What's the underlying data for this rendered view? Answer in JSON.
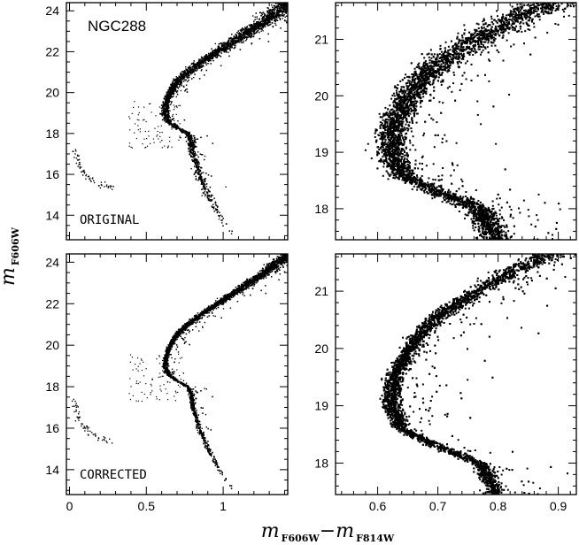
{
  "chart_data": {
    "type": "scatter",
    "xlabel_main": "m",
    "xlabel_sub1": "F606W",
    "xlabel_minus": "−m",
    "xlabel_sub2": "F814W",
    "ylabel_main": "m",
    "ylabel_sub": "F606W",
    "panels": [
      {
        "id": "top-left",
        "title": "NGC288",
        "label": "ORIGINAL",
        "xlim": [
          -0.02,
          1.42
        ],
        "ylim": [
          24.4,
          12.8
        ],
        "xticks": [
          0,
          0.5,
          1
        ],
        "xtick_labels": [
          "",
          "",
          ""
        ],
        "yticks": [
          14,
          16,
          18,
          20,
          22,
          24
        ],
        "ytick_labels": [
          "14",
          "16",
          "18",
          "20",
          "22",
          "24"
        ],
        "scatter": 0.012,
        "n_points": 5200
      },
      {
        "id": "top-right",
        "title": "",
        "label": "",
        "xlim": [
          0.53,
          0.93
        ],
        "ylim": [
          21.65,
          17.45
        ],
        "xticks": [
          0.6,
          0.7,
          0.8,
          0.9
        ],
        "xtick_labels": [
          "",
          "",
          "",
          ""
        ],
        "yticks": [
          18,
          19,
          20,
          21
        ],
        "ytick_labels": [
          "18",
          "19",
          "20",
          "21"
        ],
        "scatter": 0.012,
        "n_points": 5200
      },
      {
        "id": "bottom-left",
        "title": "",
        "label": "CORRECTED",
        "xlim": [
          -0.02,
          1.42
        ],
        "ylim": [
          24.4,
          12.8
        ],
        "xticks": [
          0,
          0.5,
          1
        ],
        "xtick_labels": [
          "0",
          "0.5",
          "1"
        ],
        "yticks": [
          14,
          16,
          18,
          20,
          22,
          24
        ],
        "ytick_labels": [
          "14",
          "16",
          "18",
          "20",
          "22",
          "24"
        ],
        "scatter": 0.007,
        "n_points": 5200
      },
      {
        "id": "bottom-right",
        "title": "",
        "label": "",
        "xlim": [
          0.53,
          0.93
        ],
        "ylim": [
          21.65,
          17.45
        ],
        "xticks": [
          0.6,
          0.7,
          0.8,
          0.9
        ],
        "xtick_labels": [
          "0.6",
          "0.7",
          "0.8",
          "0.9"
        ],
        "yticks": [
          18,
          19,
          20,
          21
        ],
        "ytick_labels": [
          "18",
          "19",
          "20",
          "21"
        ],
        "scatter": 0.007,
        "n_points": 5200
      }
    ],
    "sequence": {
      "description_points": [
        {
          "mag": 13.2,
          "color": 1.05
        },
        {
          "mag": 14.0,
          "color": 0.97
        },
        {
          "mag": 15.0,
          "color": 0.9
        },
        {
          "mag": 16.0,
          "color": 0.84
        },
        {
          "mag": 17.0,
          "color": 0.8
        },
        {
          "mag": 17.6,
          "color": 0.79
        },
        {
          "mag": 18.0,
          "color": 0.77
        },
        {
          "mag": 18.3,
          "color": 0.7
        },
        {
          "mag": 18.6,
          "color": 0.64
        },
        {
          "mag": 19.0,
          "color": 0.62
        },
        {
          "mag": 19.5,
          "color": 0.625
        },
        {
          "mag": 20.0,
          "color": 0.65
        },
        {
          "mag": 20.5,
          "color": 0.69
        },
        {
          "mag": 21.0,
          "color": 0.76
        },
        {
          "mag": 21.5,
          "color": 0.85
        },
        {
          "mag": 22.0,
          "color": 0.95
        },
        {
          "mag": 22.5,
          "color": 1.06
        },
        {
          "mag": 23.0,
          "color": 1.16
        },
        {
          "mag": 23.5,
          "color": 1.26
        },
        {
          "mag": 24.0,
          "color": 1.35
        },
        {
          "mag": 24.4,
          "color": 1.42
        }
      ],
      "horizontal_branch": [
        {
          "mag": 15.4,
          "color": 0.28
        },
        {
          "mag": 15.5,
          "color": 0.2
        },
        {
          "mag": 15.8,
          "color": 0.13
        },
        {
          "mag": 16.3,
          "color": 0.07
        },
        {
          "mag": 16.9,
          "color": 0.04
        },
        {
          "mag": 17.4,
          "color": 0.03
        }
      ]
    }
  }
}
